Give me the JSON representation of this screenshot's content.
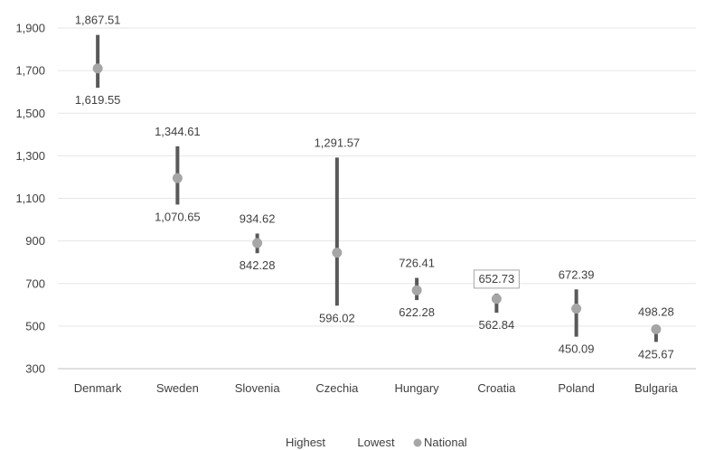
{
  "chart_data": {
    "type": "high-low-marker",
    "title": "",
    "xlabel": "",
    "ylabel": "",
    "ylim": [
      300,
      1980
    ],
    "yticks": [
      300,
      500,
      700,
      900,
      1100,
      1300,
      1500,
      1700,
      1900
    ],
    "ytick_labels": [
      "300",
      "500",
      "700",
      "900",
      "1,100",
      "1,300",
      "1,500",
      "1,700",
      "1,900"
    ],
    "grid": true,
    "legend_placement": "bottom",
    "categories": [
      "Denmark",
      "Sweden",
      "Slovenia",
      "Czechia",
      "Hungary",
      "Croatia",
      "Poland",
      "Bulgaria"
    ],
    "series": [
      {
        "name": "Highest",
        "values": [
          1867.51,
          1344.61,
          934.62,
          1291.57,
          726.41,
          652.73,
          672.39,
          498.28
        ],
        "labels": [
          "1,867.51",
          "1,344.61",
          "934.62",
          "1,291.57",
          "726.41",
          "652.73",
          "672.39",
          "498.28"
        ]
      },
      {
        "name": "Lowest",
        "values": [
          1619.55,
          1070.65,
          842.28,
          596.02,
          622.28,
          562.84,
          450.09,
          425.67
        ],
        "labels": [
          "1,619.55",
          "1,070.65",
          "842.28",
          "596.02",
          "622.28",
          "562.84",
          "450.09",
          "425.67"
        ]
      },
      {
        "name": "National",
        "values": [
          1710,
          1195,
          890,
          845,
          668,
          628,
          582,
          485
        ]
      }
    ],
    "highlighted_label": "Croatia-Highest",
    "colors": {
      "range_bar": "#595959",
      "marker": "#a6a6a6",
      "grid": "#e6e6e6",
      "axis": "#bfbfbf",
      "text": "#404040",
      "label_box": "#a6a6a6"
    }
  }
}
